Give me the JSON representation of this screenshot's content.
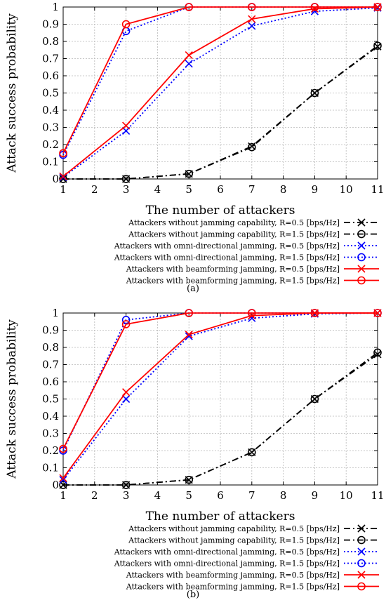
{
  "chart_data": [
    {
      "type": "line",
      "caption": "(a)",
      "xlabel": "The number of attackers",
      "ylabel": "Attack success probability",
      "xlim": [
        1,
        11
      ],
      "ylim": [
        0,
        1
      ],
      "x_ticks": [
        "1",
        "2",
        "3",
        "4",
        "5",
        "6",
        "7",
        "8",
        "9",
        "10",
        "11"
      ],
      "y_ticks": [
        "0",
        "0.1",
        "0.2",
        "0.3",
        "0.4",
        "0.5",
        "0.6",
        "0.7",
        "0.8",
        "0.9",
        "1"
      ],
      "grid": true,
      "legend_position": "bottom-right-outside",
      "x": [
        1,
        3,
        5,
        7,
        9,
        11
      ],
      "series": [
        {
          "name": "Attackers without jamming capability, R=0.5 [bps/Hz]",
          "color": "#000000",
          "dash": "dashdot",
          "marker": "x",
          "values": [
            0,
            0,
            0.03,
            0.19,
            0.5,
            0.77
          ]
        },
        {
          "name": "Attackers without jamming capability, R=1.5 [bps/Hz]",
          "color": "#000000",
          "dash": "dashdot",
          "marker": "o",
          "values": [
            0,
            0,
            0.03,
            0.185,
            0.5,
            0.775
          ]
        },
        {
          "name": "Attackers with omni-directional jamming, R=0.5 [bps/Hz]",
          "color": "#0000ff",
          "dash": "dot",
          "marker": "x",
          "values": [
            0.01,
            0.28,
            0.67,
            0.89,
            0.975,
            0.995
          ]
        },
        {
          "name": "Attackers with omni-directional jamming, R=1.5 [bps/Hz]",
          "color": "#0000ff",
          "dash": "dot",
          "marker": "o",
          "values": [
            0.14,
            0.86,
            1.0,
            1.0,
            1.0,
            1.0
          ]
        },
        {
          "name": "Attackers with beamforming jamming, R=0.5 [bps/Hz]",
          "color": "#ff0000",
          "dash": "solid",
          "marker": "x",
          "values": [
            0.015,
            0.31,
            0.72,
            0.93,
            0.99,
            1.0
          ]
        },
        {
          "name": "Attackers with beamforming jamming, R=1.5 [bps/Hz]",
          "color": "#ff0000",
          "dash": "solid",
          "marker": "o",
          "values": [
            0.15,
            0.9,
            1.0,
            1.0,
            1.0,
            1.0
          ]
        }
      ]
    },
    {
      "type": "line",
      "caption": "(b)",
      "xlabel": "The number of attackers",
      "ylabel": "Attack success probability",
      "xlim": [
        1,
        11
      ],
      "ylim": [
        0,
        1
      ],
      "x_ticks": [
        "1",
        "2",
        "3",
        "4",
        "5",
        "6",
        "7",
        "8",
        "9",
        "10",
        "11"
      ],
      "y_ticks": [
        "0",
        "0.1",
        "0.2",
        "0.3",
        "0.4",
        "0.5",
        "0.6",
        "0.7",
        "0.8",
        "0.9",
        "1"
      ],
      "grid": true,
      "legend_position": "bottom-right-outside",
      "x": [
        1,
        3,
        5,
        7,
        9,
        11
      ],
      "series": [
        {
          "name": "Attackers without jamming capability, R=0.5 [bps/Hz]",
          "color": "#000000",
          "dash": "dashdot",
          "marker": "x",
          "values": [
            0,
            0,
            0.03,
            0.19,
            0.5,
            0.76
          ]
        },
        {
          "name": "Attackers without jamming capability, R=1.5 [bps/Hz]",
          "color": "#000000",
          "dash": "dashdot",
          "marker": "o",
          "values": [
            0,
            0,
            0.03,
            0.19,
            0.5,
            0.77
          ]
        },
        {
          "name": "Attackers with omni-directional jamming, R=0.5 [bps/Hz]",
          "color": "#0000ff",
          "dash": "dot",
          "marker": "x",
          "values": [
            0.03,
            0.5,
            0.865,
            0.97,
            0.995,
            1.0
          ]
        },
        {
          "name": "Attackers with omni-directional jamming, R=1.5 [bps/Hz]",
          "color": "#0000ff",
          "dash": "dot",
          "marker": "o",
          "values": [
            0.2,
            0.96,
            1.0,
            1.0,
            1.0,
            1.0
          ]
        },
        {
          "name": "Attackers with beamforming jamming, R=0.5 [bps/Hz]",
          "color": "#ff0000",
          "dash": "solid",
          "marker": "x",
          "values": [
            0.04,
            0.54,
            0.875,
            0.985,
            1.0,
            1.0
          ]
        },
        {
          "name": "Attackers with beamforming jamming, R=1.5 [bps/Hz]",
          "color": "#ff0000",
          "dash": "solid",
          "marker": "o",
          "values": [
            0.21,
            0.935,
            1.0,
            1.0,
            1.0,
            1.0
          ]
        }
      ]
    }
  ]
}
